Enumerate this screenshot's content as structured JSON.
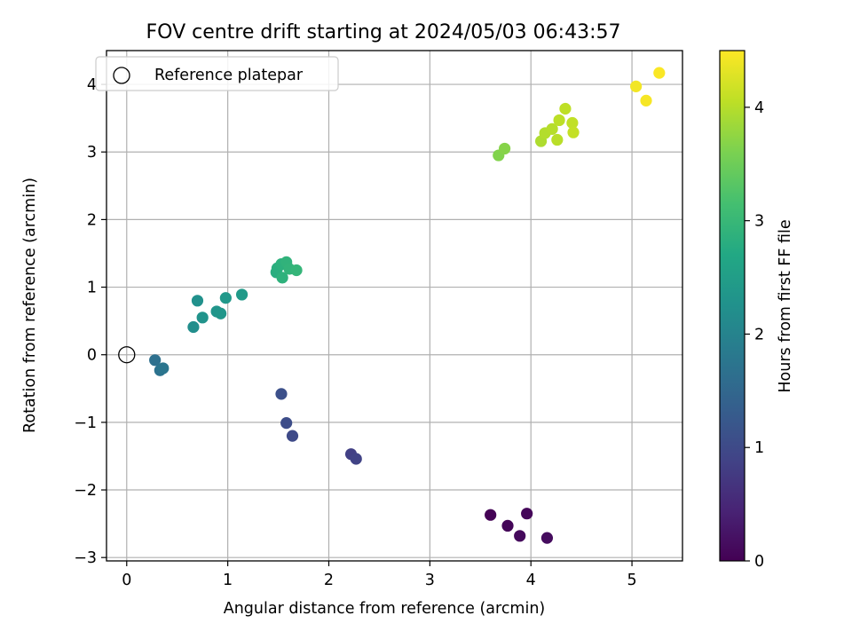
{
  "chart_data": {
    "type": "scatter",
    "title": "FOV centre drift starting at 2024/05/03 06:43:57",
    "xlabel": "Angular distance from reference (arcmin)",
    "ylabel": "Rotation from reference (arcmin)",
    "xlim": [
      -0.2,
      5.5
    ],
    "ylim": [
      -3.05,
      4.5
    ],
    "xticks": [
      0,
      1,
      2,
      3,
      4,
      5
    ],
    "yticks": [
      -3,
      -2,
      -1,
      0,
      1,
      2,
      3,
      4
    ],
    "grid": true,
    "colormap": "viridis",
    "colorbar": {
      "label": "Hours from first FF file",
      "range": [
        0,
        4.5
      ],
      "ticks": [
        0,
        1,
        2,
        3,
        4
      ]
    },
    "legend": {
      "placement": "top-left",
      "entries": [
        {
          "label": "Reference platepar",
          "marker": "open-circle"
        }
      ]
    },
    "reference_point": {
      "x": 0,
      "y": 0
    },
    "series": [
      {
        "points": [
          {
            "x": 3.6,
            "y": -2.37,
            "hours": 0.02
          },
          {
            "x": 3.77,
            "y": -2.53,
            "hours": 0.05
          },
          {
            "x": 3.96,
            "y": -2.35,
            "hours": 0.08
          },
          {
            "x": 3.89,
            "y": -2.68,
            "hours": 0.11
          },
          {
            "x": 4.16,
            "y": -2.71,
            "hours": 0.14
          },
          {
            "x": 2.22,
            "y": -1.47,
            "hours": 0.85
          },
          {
            "x": 2.27,
            "y": -1.54,
            "hours": 0.88
          },
          {
            "x": 1.53,
            "y": -0.58,
            "hours": 1.1
          },
          {
            "x": 1.58,
            "y": -1.01,
            "hours": 1.05
          },
          {
            "x": 1.64,
            "y": -1.2,
            "hours": 1.0
          },
          {
            "x": 0.28,
            "y": -0.08,
            "hours": 1.65
          },
          {
            "x": 0.33,
            "y": -0.23,
            "hours": 1.7
          },
          {
            "x": 0.36,
            "y": -0.2,
            "hours": 1.75
          },
          {
            "x": 0.66,
            "y": 0.41,
            "hours": 2.2
          },
          {
            "x": 0.7,
            "y": 0.8,
            "hours": 2.25
          },
          {
            "x": 0.75,
            "y": 0.55,
            "hours": 2.28
          },
          {
            "x": 0.89,
            "y": 0.64,
            "hours": 2.32
          },
          {
            "x": 0.93,
            "y": 0.61,
            "hours": 2.35
          },
          {
            "x": 0.98,
            "y": 0.84,
            "hours": 2.38
          },
          {
            "x": 1.14,
            "y": 0.89,
            "hours": 2.42
          },
          {
            "x": 1.48,
            "y": 1.22,
            "hours": 2.8
          },
          {
            "x": 1.49,
            "y": 1.28,
            "hours": 2.82
          },
          {
            "x": 1.53,
            "y": 1.34,
            "hours": 2.85
          },
          {
            "x": 1.54,
            "y": 1.14,
            "hours": 2.87
          },
          {
            "x": 1.58,
            "y": 1.37,
            "hours": 2.9
          },
          {
            "x": 1.61,
            "y": 1.27,
            "hours": 2.92
          },
          {
            "x": 1.68,
            "y": 1.25,
            "hours": 2.95
          },
          {
            "x": 3.68,
            "y": 2.95,
            "hours": 3.65
          },
          {
            "x": 3.74,
            "y": 3.05,
            "hours": 3.68
          },
          {
            "x": 4.1,
            "y": 3.16,
            "hours": 3.95
          },
          {
            "x": 4.14,
            "y": 3.28,
            "hours": 3.98
          },
          {
            "x": 4.21,
            "y": 3.34,
            "hours": 4.0
          },
          {
            "x": 4.26,
            "y": 3.18,
            "hours": 4.02
          },
          {
            "x": 4.28,
            "y": 3.47,
            "hours": 4.04
          },
          {
            "x": 4.34,
            "y": 3.64,
            "hours": 4.06
          },
          {
            "x": 4.41,
            "y": 3.43,
            "hours": 4.08
          },
          {
            "x": 4.42,
            "y": 3.29,
            "hours": 4.1
          },
          {
            "x": 5.04,
            "y": 3.97,
            "hours": 4.42
          },
          {
            "x": 5.14,
            "y": 3.76,
            "hours": 4.45
          },
          {
            "x": 5.27,
            "y": 4.17,
            "hours": 4.48
          }
        ]
      }
    ]
  }
}
